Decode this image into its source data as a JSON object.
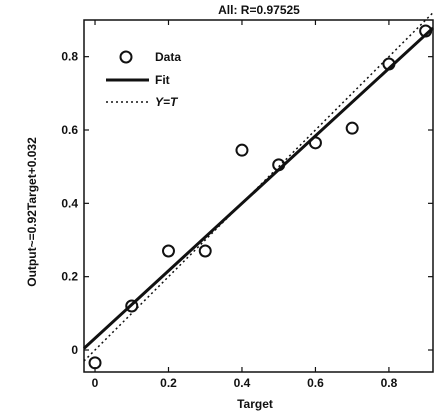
{
  "chart_data": {
    "type": "scatter",
    "title": "All: R=0.97525",
    "xlabel": "Target",
    "ylabel": "Output~=0.92Target+0.032",
    "xlim": [
      -0.03,
      0.92
    ],
    "ylim": [
      -0.06,
      0.9
    ],
    "xticks": [
      0,
      0.2,
      0.4,
      0.6,
      0.8
    ],
    "yticks": [
      0,
      0.2,
      0.4,
      0.6,
      0.8
    ],
    "xtick_labels": [
      "0",
      "0.2",
      "0.4",
      "0.6",
      "0.8"
    ],
    "ytick_labels": [
      "0",
      "0.2",
      "0.4",
      "0.6",
      "0.8"
    ],
    "grid": false,
    "legend": {
      "position": "top-left",
      "entries": [
        "Data",
        "Fit",
        "Y=T"
      ]
    },
    "series": [
      {
        "name": "Data",
        "marker": "circle",
        "x": [
          0,
          0.1,
          0.2,
          0.3,
          0.4,
          0.5,
          0.6,
          0.7,
          0.8,
          0.9
        ],
        "y": [
          -0.035,
          0.12,
          0.27,
          0.27,
          0.545,
          0.505,
          0.565,
          0.605,
          0.78,
          0.87
        ]
      },
      {
        "name": "Fit",
        "style": "solid-thick",
        "slope": 0.92,
        "intercept": 0.032,
        "x": [
          -0.03,
          0.92
        ]
      },
      {
        "name": "Y=T",
        "style": "dotted",
        "x": [
          -0.03,
          0.92
        ],
        "y": [
          -0.03,
          0.92
        ]
      }
    ]
  }
}
